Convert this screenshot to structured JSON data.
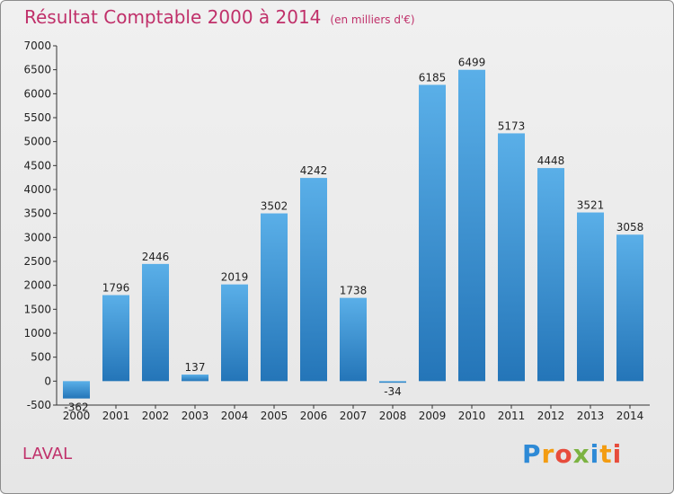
{
  "chart_data": {
    "type": "bar",
    "title": "Résultat Comptable 2000 à 2014",
    "subtitle": "(en milliers d'€)",
    "categories": [
      "2000",
      "2001",
      "2002",
      "2003",
      "2004",
      "2005",
      "2006",
      "2007",
      "2008",
      "2009",
      "2010",
      "2011",
      "2012",
      "2013",
      "2014"
    ],
    "values": [
      -362,
      1796,
      2446,
      137,
      2019,
      3502,
      4242,
      1738,
      -34,
      6185,
      6499,
      5173,
      4448,
      3521,
      3058
    ],
    "ylim": [
      -500,
      7000
    ],
    "yticks": [
      -500,
      0,
      500,
      1000,
      1500,
      2000,
      2500,
      3000,
      3500,
      4000,
      4500,
      5000,
      5500,
      6000,
      6500,
      7000
    ],
    "xlabel": "",
    "ylabel": "",
    "grid": false,
    "bar_color": "#3d95d8"
  },
  "footer": {
    "place": "LAVAL",
    "brand_letters": [
      "P",
      "r",
      "o",
      "x",
      "i",
      "t",
      "i"
    ]
  }
}
